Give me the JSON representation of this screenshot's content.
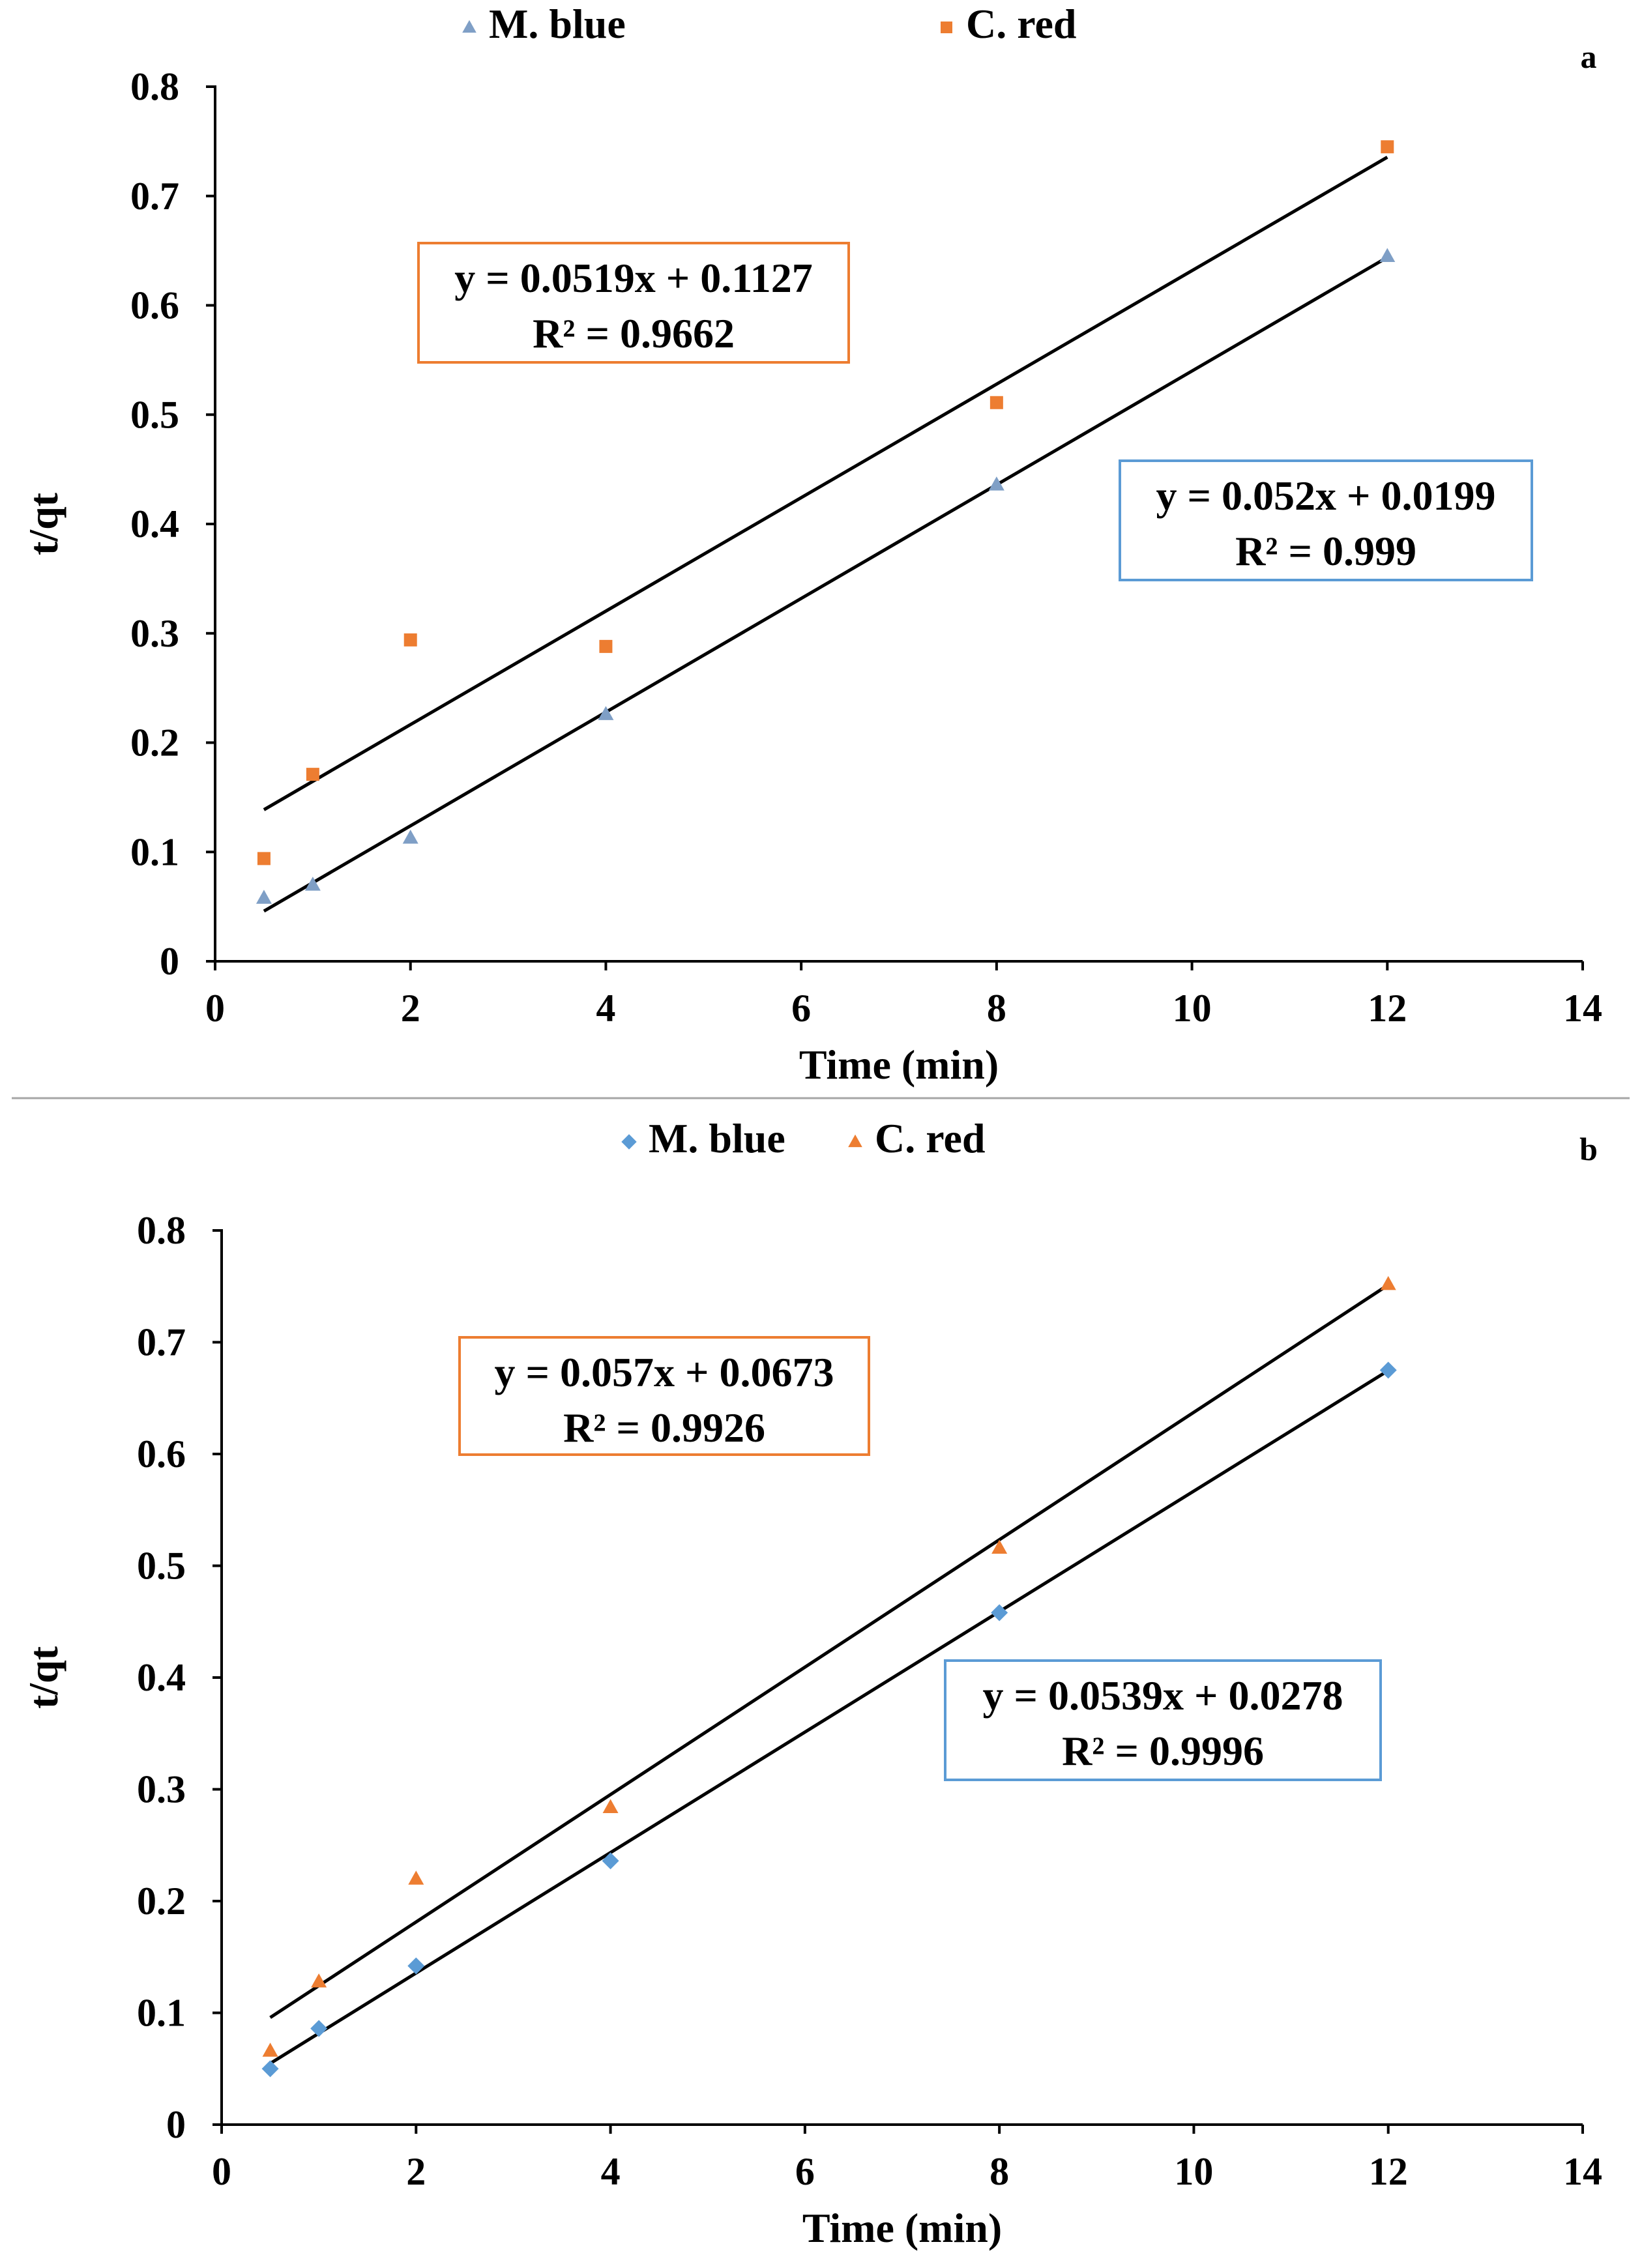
{
  "chart_data": [
    {
      "panel_label": "a",
      "type": "scatter",
      "title": "",
      "xlabel": "Time (min)",
      "ylabel": "t/qt",
      "xlim": [
        0,
        14
      ],
      "ylim": [
        0,
        0.8
      ],
      "xticks": [
        "0",
        "2",
        "4",
        "6",
        "8",
        "10",
        "12",
        "14"
      ],
      "yticks": [
        "0",
        "0.1",
        "0.2",
        "0.3",
        "0.4",
        "0.5",
        "0.6",
        "0.7",
        "0.8"
      ],
      "grid": false,
      "legend_position": "top-center",
      "series": [
        {
          "name": "M. blue",
          "marker": "triangle",
          "color": "#7f9fc6",
          "x": [
            0.5,
            1,
            2,
            4,
            8,
            12
          ],
          "y": [
            0.058,
            0.07,
            0.113,
            0.226,
            0.436,
            0.645
          ],
          "trendline": {
            "slope": 0.052,
            "intercept": 0.0199,
            "color": "#000000"
          },
          "equation": "y = 0.052x + 0.0199",
          "r2": "R² = 0.999",
          "box_color": "#5b9bd5",
          "box_position": "right-middle"
        },
        {
          "name": "C. red",
          "marker": "square",
          "color": "#ed7d31",
          "x": [
            0.5,
            1,
            2,
            4,
            8,
            12
          ],
          "y": [
            0.094,
            0.171,
            0.294,
            0.288,
            0.511,
            0.745
          ],
          "trendline": {
            "slope": 0.0519,
            "intercept": 0.1127,
            "color": "#000000"
          },
          "equation": "y = 0.0519x + 0.1127",
          "r2": "R² = 0.9662",
          "box_color": "#ed7d31",
          "box_position": "upper-left"
        }
      ]
    },
    {
      "panel_label": "b",
      "type": "scatter",
      "title": "",
      "xlabel": "Time (min)",
      "ylabel": "t/qt",
      "xlim": [
        0,
        14
      ],
      "ylim": [
        0,
        0.8
      ],
      "xticks": [
        "0",
        "2",
        "4",
        "6",
        "8",
        "10",
        "12",
        "14"
      ],
      "yticks": [
        "0",
        "0.1",
        "0.2",
        "0.3",
        "0.4",
        "0.5",
        "0.6",
        "0.7",
        "0.8"
      ],
      "grid": false,
      "legend_position": "top-center",
      "series": [
        {
          "name": "M. blue",
          "marker": "diamond",
          "color": "#5b9bd5",
          "x": [
            0.5,
            1,
            2,
            4,
            8,
            12
          ],
          "y": [
            0.05,
            0.086,
            0.142,
            0.236,
            0.458,
            0.675
          ],
          "trendline": {
            "slope": 0.0539,
            "intercept": 0.0278,
            "color": "#000000"
          },
          "equation": "y = 0.0539x + 0.0278",
          "r2": "R² = 0.9996",
          "box_color": "#5b9bd5",
          "box_position": "right-middle"
        },
        {
          "name": "C. red",
          "marker": "triangle",
          "color": "#ed7d31",
          "x": [
            0.5,
            1,
            2,
            4,
            8,
            12
          ],
          "y": [
            0.066,
            0.128,
            0.22,
            0.284,
            0.516,
            0.752
          ],
          "trendline": {
            "slope": 0.057,
            "intercept": 0.0673,
            "color": "#000000"
          },
          "equation": "y = 0.057x + 0.0673",
          "r2": "R² = 0.9926",
          "box_color": "#ed7d31",
          "box_position": "upper-left"
        }
      ]
    }
  ]
}
